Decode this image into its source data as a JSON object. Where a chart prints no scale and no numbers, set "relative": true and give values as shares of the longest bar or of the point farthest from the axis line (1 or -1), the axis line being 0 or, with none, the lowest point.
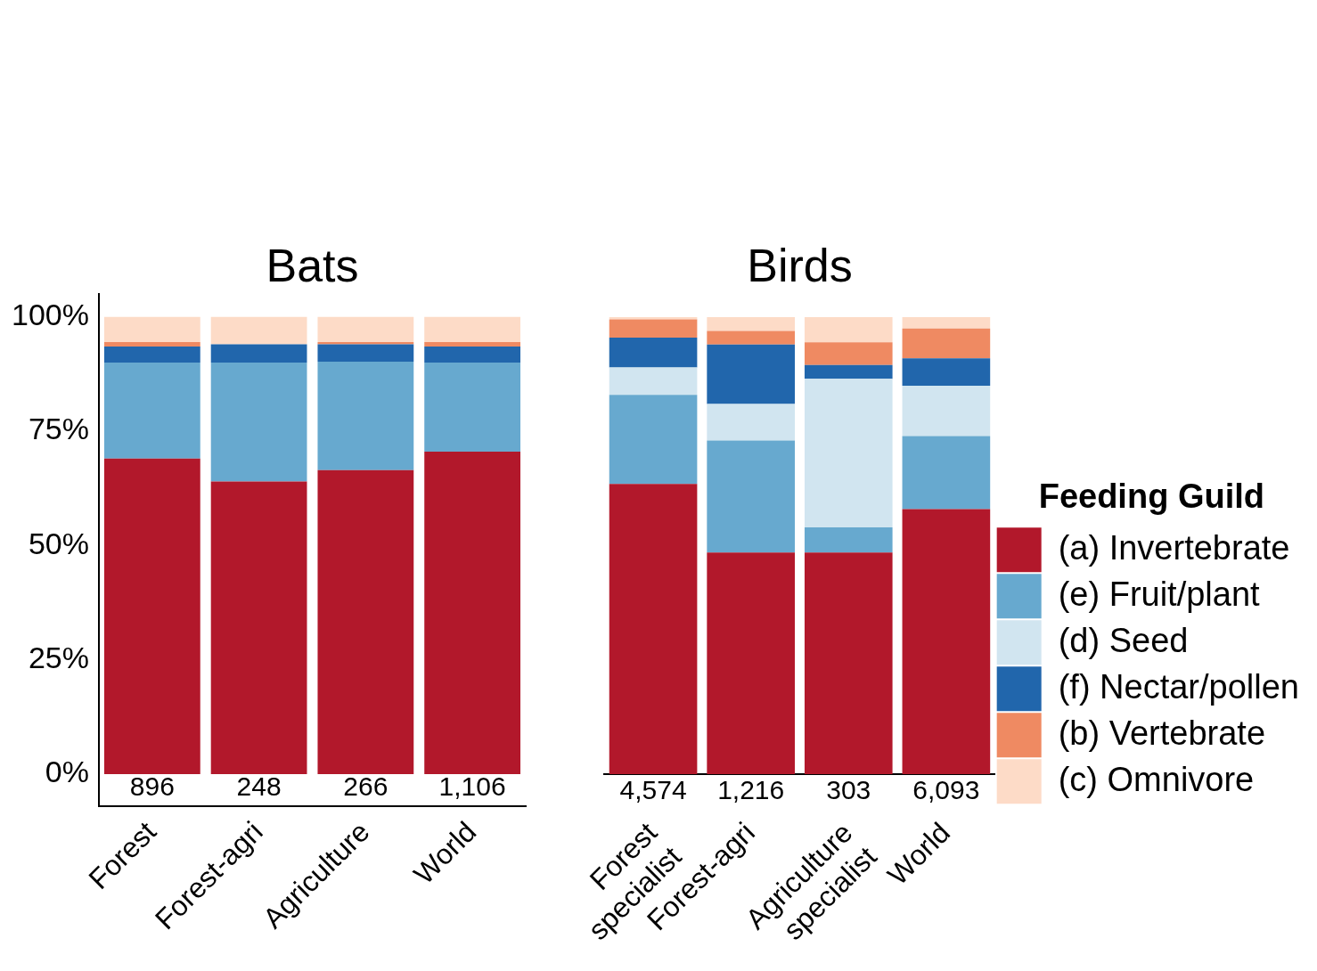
{
  "chart_data": [
    {
      "type": "bar",
      "title": "Bats",
      "stacked": true,
      "categories": [
        "Forest",
        "Forest-agri",
        "Agriculture",
        "World"
      ],
      "series": [
        {
          "color": "#b2182b",
          "values": [
            69,
            64,
            66.5,
            70.5
          ]
        },
        {
          "color": "#67a9cf",
          "values": [
            21,
            26,
            23.7,
            19.5
          ]
        },
        {
          "color": "#d1e5f0",
          "values": [
            0,
            0,
            0,
            0
          ]
        },
        {
          "color": "#2166ac",
          "values": [
            3.5,
            4,
            3.8,
            3.5
          ]
        },
        {
          "color": "#ef8a62",
          "values": [
            1,
            0,
            0.5,
            1
          ]
        },
        {
          "color": "#fddbc7",
          "values": [
            5.5,
            6,
            5.5,
            5.5
          ]
        }
      ],
      "ylim": [
        -7,
        105
      ],
      "yticks": [
        {
          "value": 0,
          "label": "0%"
        },
        {
          "value": 25,
          "label": "25%"
        },
        {
          "value": 50,
          "label": "50%"
        },
        {
          "value": 75,
          "label": "75%"
        },
        {
          "value": 100,
          "label": "100%"
        }
      ],
      "grid": false,
      "legend": false,
      "annotations": [
        "896",
        "248",
        "266",
        "1,106"
      ]
    },
    {
      "type": "bar",
      "title": "Birds",
      "stacked": true,
      "categories": [
        "Forest\nspecialist",
        "Forest-agri",
        "Agriculture\nspecialist",
        "World"
      ],
      "series": [
        {
          "name": "(a) Invertebrate",
          "color": "#b2182b",
          "values": [
            0.635,
            0.485,
            0.485,
            0.58
          ]
        },
        {
          "name": "(e) Fruit/plant",
          "color": "#67a9cf",
          "values": [
            0.195,
            0.245,
            0.055,
            0.16
          ]
        },
        {
          "name": "(d) Seed",
          "color": "#d1e5f0",
          "values": [
            0.06,
            0.08,
            0.325,
            0.11
          ]
        },
        {
          "name": "(f) Nectar/pollen",
          "color": "#2166ac",
          "values": [
            0.065,
            0.13,
            0.03,
            0.06
          ]
        },
        {
          "name": "(b) Vertebrate",
          "color": "#ef8a62",
          "values": [
            0.04,
            0.03,
            0.05,
            0.065
          ]
        },
        {
          "name": "(c) Omnivore",
          "color": "#fddbc7",
          "values": [
            0.005,
            0.03,
            0.055,
            0.025
          ]
        }
      ],
      "relative": true,
      "grid": false,
      "legend": "right",
      "legend_title": "Feeding Guild",
      "tick_labels": "x",
      "annotations": [
        "4,574",
        "1,216",
        "303",
        "6,093"
      ]
    }
  ]
}
